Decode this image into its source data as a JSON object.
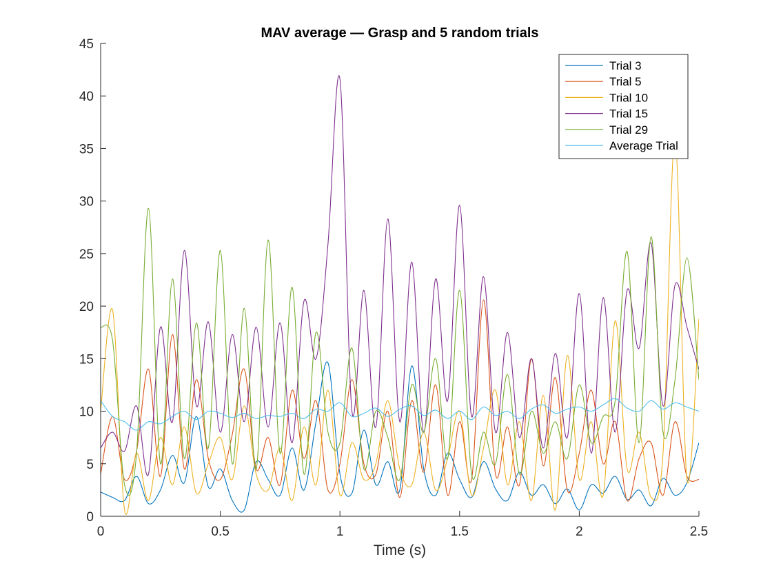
{
  "chart_data": {
    "type": "line",
    "title": "MAV average — Grasp and 5 random trials",
    "xlabel": "Time (s)",
    "ylabel": "",
    "xlim": [
      0,
      2.5
    ],
    "ylim": [
      0,
      45
    ],
    "x_ticks": [
      "0",
      "0.5",
      "1",
      "1.5",
      "2",
      "2.5"
    ],
    "y_ticks": [
      "0",
      "5",
      "10",
      "15",
      "20",
      "25",
      "30",
      "35",
      "40",
      "45"
    ],
    "grid": false,
    "legend_position": "top-right",
    "series": [
      {
        "name": "Trial 3",
        "color": "#0072BD",
        "x": [
          0,
          0.05,
          0.1,
          0.15,
          0.2,
          0.25,
          0.3,
          0.35,
          0.4,
          0.45,
          0.5,
          0.55,
          0.6,
          0.65,
          0.7,
          0.75,
          0.8,
          0.85,
          0.9,
          0.95,
          1.0,
          1.05,
          1.1,
          1.15,
          1.2,
          1.25,
          1.3,
          1.35,
          1.4,
          1.45,
          1.5,
          1.55,
          1.6,
          1.65,
          1.7,
          1.75,
          1.8,
          1.85,
          1.9,
          1.95,
          2.0,
          2.05,
          2.1,
          2.15,
          2.2,
          2.25,
          2.3,
          2.35,
          2.4,
          2.45,
          2.5
        ],
        "values": [
          2.3,
          1.8,
          1.5,
          3.8,
          1.2,
          2.5,
          5.8,
          3.2,
          9.5,
          2.8,
          4.5,
          1.5,
          0.6,
          5.2,
          3.5,
          2.0,
          6.5,
          2.5,
          9.0,
          14.6,
          4.0,
          2.2,
          8.2,
          3.0,
          5.2,
          2.5,
          14.3,
          4.5,
          2.0,
          6.0,
          3.5,
          1.8,
          5.2,
          2.6,
          1.5,
          4.2,
          2.0,
          3.0,
          1.2,
          2.6,
          0.6,
          3.0,
          2.2,
          3.8,
          1.6,
          2.5,
          1.0,
          3.6,
          2.0,
          3.2,
          7.0
        ]
      },
      {
        "name": "Trial 5",
        "color": "#D95319",
        "x": [
          0,
          0.05,
          0.1,
          0.15,
          0.2,
          0.25,
          0.3,
          0.35,
          0.4,
          0.45,
          0.5,
          0.55,
          0.6,
          0.65,
          0.7,
          0.75,
          0.8,
          0.85,
          0.9,
          0.95,
          1.0,
          1.05,
          1.1,
          1.15,
          1.2,
          1.25,
          1.3,
          1.35,
          1.4,
          1.45,
          1.5,
          1.55,
          1.6,
          1.65,
          1.7,
          1.75,
          1.8,
          1.85,
          1.9,
          1.95,
          2.0,
          2.05,
          2.1,
          2.15,
          2.2,
          2.25,
          2.3,
          2.35,
          2.4,
          2.45,
          2.5
        ],
        "values": [
          4.0,
          9.5,
          3.5,
          6.2,
          14.0,
          3.8,
          17.3,
          4.5,
          13.0,
          5.5,
          3.5,
          7.8,
          14.0,
          4.5,
          7.5,
          3.0,
          12.0,
          5.5,
          11.0,
          2.5,
          5.0,
          13.0,
          5.0,
          4.0,
          10.0,
          1.8,
          11.0,
          4.2,
          12.5,
          2.0,
          9.0,
          3.5,
          20.6,
          4.0,
          8.5,
          3.0,
          15.0,
          4.8,
          13.2,
          2.5,
          6.0,
          12.0,
          5.0,
          9.0,
          1.5,
          5.5,
          7.0,
          2.0,
          9.0,
          3.8,
          3.5
        ]
      },
      {
        "name": "Trial 10",
        "color": "#EDB120",
        "x": [
          0,
          0.05,
          0.1,
          0.15,
          0.2,
          0.25,
          0.3,
          0.35,
          0.4,
          0.45,
          0.5,
          0.55,
          0.6,
          0.65,
          0.7,
          0.75,
          0.8,
          0.85,
          0.9,
          0.95,
          1.0,
          1.05,
          1.1,
          1.15,
          1.2,
          1.25,
          1.3,
          1.35,
          1.4,
          1.45,
          1.5,
          1.55,
          1.6,
          1.65,
          1.7,
          1.75,
          1.8,
          1.85,
          1.9,
          1.95,
          2.0,
          2.05,
          2.1,
          2.15,
          2.2,
          2.25,
          2.3,
          2.35,
          2.4,
          2.45,
          2.5
        ],
        "values": [
          10.0,
          19.6,
          0.6,
          6.0,
          1.5,
          7.5,
          3.0,
          8.5,
          2.2,
          5.0,
          7.5,
          3.5,
          10.5,
          4.0,
          2.5,
          6.5,
          1.5,
          8.5,
          3.0,
          12.0,
          2.0,
          7.0,
          3.5,
          5.0,
          11.0,
          4.5,
          3.0,
          8.0,
          2.5,
          5.5,
          10.0,
          2.0,
          6.5,
          12.0,
          3.0,
          9.0,
          1.5,
          11.5,
          0.6,
          15.3,
          3.5,
          9.0,
          2.0,
          18.6,
          4.5,
          8.0,
          1.8,
          6.0,
          36.0,
          3.5,
          18.8
        ]
      },
      {
        "name": "Trial 15",
        "color": "#7E2F8E",
        "x": [
          0,
          0.05,
          0.1,
          0.15,
          0.2,
          0.25,
          0.3,
          0.35,
          0.4,
          0.45,
          0.5,
          0.55,
          0.6,
          0.65,
          0.7,
          0.75,
          0.8,
          0.85,
          0.9,
          0.95,
          1.0,
          1.05,
          1.1,
          1.15,
          1.2,
          1.25,
          1.3,
          1.35,
          1.4,
          1.45,
          1.5,
          1.55,
          1.6,
          1.65,
          1.7,
          1.75,
          1.8,
          1.85,
          1.9,
          1.95,
          2.0,
          2.05,
          2.1,
          2.15,
          2.2,
          2.25,
          2.3,
          2.35,
          2.4,
          2.45,
          2.5
        ],
        "values": [
          6.5,
          8.0,
          6.2,
          10.5,
          4.0,
          18.0,
          9.0,
          25.3,
          10.5,
          18.5,
          8.0,
          17.3,
          9.0,
          18.0,
          8.5,
          18.4,
          7.0,
          20.5,
          15.0,
          25.9,
          41.6,
          10.0,
          21.5,
          8.5,
          28.3,
          9.0,
          24.2,
          8.0,
          22.6,
          11.0,
          29.6,
          9.5,
          22.8,
          8.0,
          17.5,
          7.5,
          15.0,
          6.5,
          15.5,
          7.5,
          21.2,
          6.0,
          20.8,
          8.0,
          21.5,
          16.0,
          26.0,
          10.5,
          22.0,
          18.0,
          14.0
        ]
      },
      {
        "name": "Trial 29",
        "color": "#77AC30",
        "x": [
          0,
          0.05,
          0.1,
          0.15,
          0.2,
          0.25,
          0.3,
          0.35,
          0.4,
          0.45,
          0.5,
          0.55,
          0.6,
          0.65,
          0.7,
          0.75,
          0.8,
          0.85,
          0.9,
          0.95,
          1.0,
          1.05,
          1.1,
          1.15,
          1.2,
          1.25,
          1.3,
          1.35,
          1.4,
          1.45,
          1.5,
          1.55,
          1.6,
          1.65,
          1.7,
          1.75,
          1.8,
          1.85,
          1.9,
          1.95,
          2.0,
          2.05,
          2.1,
          2.15,
          2.2,
          2.25,
          2.3,
          2.35,
          2.4,
          2.45,
          2.5
        ],
        "values": [
          18.0,
          16.7,
          3.0,
          6.0,
          29.3,
          5.0,
          22.6,
          5.5,
          18.4,
          6.5,
          25.3,
          5.0,
          19.8,
          4.5,
          26.3,
          6.0,
          21.8,
          4.0,
          17.5,
          8.0,
          7.0,
          16.0,
          4.5,
          10.0,
          7.5,
          3.5,
          12.5,
          8.0,
          15.0,
          5.5,
          21.5,
          4.0,
          8.0,
          5.0,
          13.5,
          4.0,
          10.0,
          6.0,
          9.0,
          5.5,
          12.5,
          7.0,
          9.5,
          11.0,
          25.2,
          7.0,
          26.6,
          8.0,
          13.0,
          24.6,
          13.0
        ]
      },
      {
        "name": "Average Trial",
        "color": "#4DBEEE",
        "x": [
          0,
          0.05,
          0.1,
          0.15,
          0.2,
          0.25,
          0.3,
          0.35,
          0.4,
          0.45,
          0.5,
          0.55,
          0.6,
          0.65,
          0.7,
          0.75,
          0.8,
          0.85,
          0.9,
          0.95,
          1.0,
          1.05,
          1.1,
          1.15,
          1.2,
          1.25,
          1.3,
          1.35,
          1.4,
          1.45,
          1.5,
          1.55,
          1.6,
          1.65,
          1.7,
          1.75,
          1.8,
          1.85,
          1.9,
          1.95,
          2.0,
          2.05,
          2.1,
          2.15,
          2.2,
          2.25,
          2.3,
          2.35,
          2.4,
          2.45,
          2.5
        ],
        "values": [
          11.0,
          9.5,
          9.0,
          8.2,
          9.0,
          8.8,
          9.5,
          10.0,
          9.2,
          10.0,
          9.8,
          9.4,
          9.8,
          9.3,
          9.6,
          9.5,
          9.8,
          9.3,
          10.2,
          10.0,
          10.8,
          9.5,
          9.8,
          10.3,
          9.5,
          10.2,
          10.5,
          9.6,
          10.1,
          9.3,
          10.0,
          9.2,
          10.4,
          9.6,
          10.0,
          9.3,
          10.2,
          10.6,
          9.8,
          10.2,
          10.4,
          10.0,
          10.6,
          11.2,
          10.3,
          10.0,
          11.0,
          10.2,
          10.8,
          10.4,
          10.0
        ]
      }
    ]
  }
}
